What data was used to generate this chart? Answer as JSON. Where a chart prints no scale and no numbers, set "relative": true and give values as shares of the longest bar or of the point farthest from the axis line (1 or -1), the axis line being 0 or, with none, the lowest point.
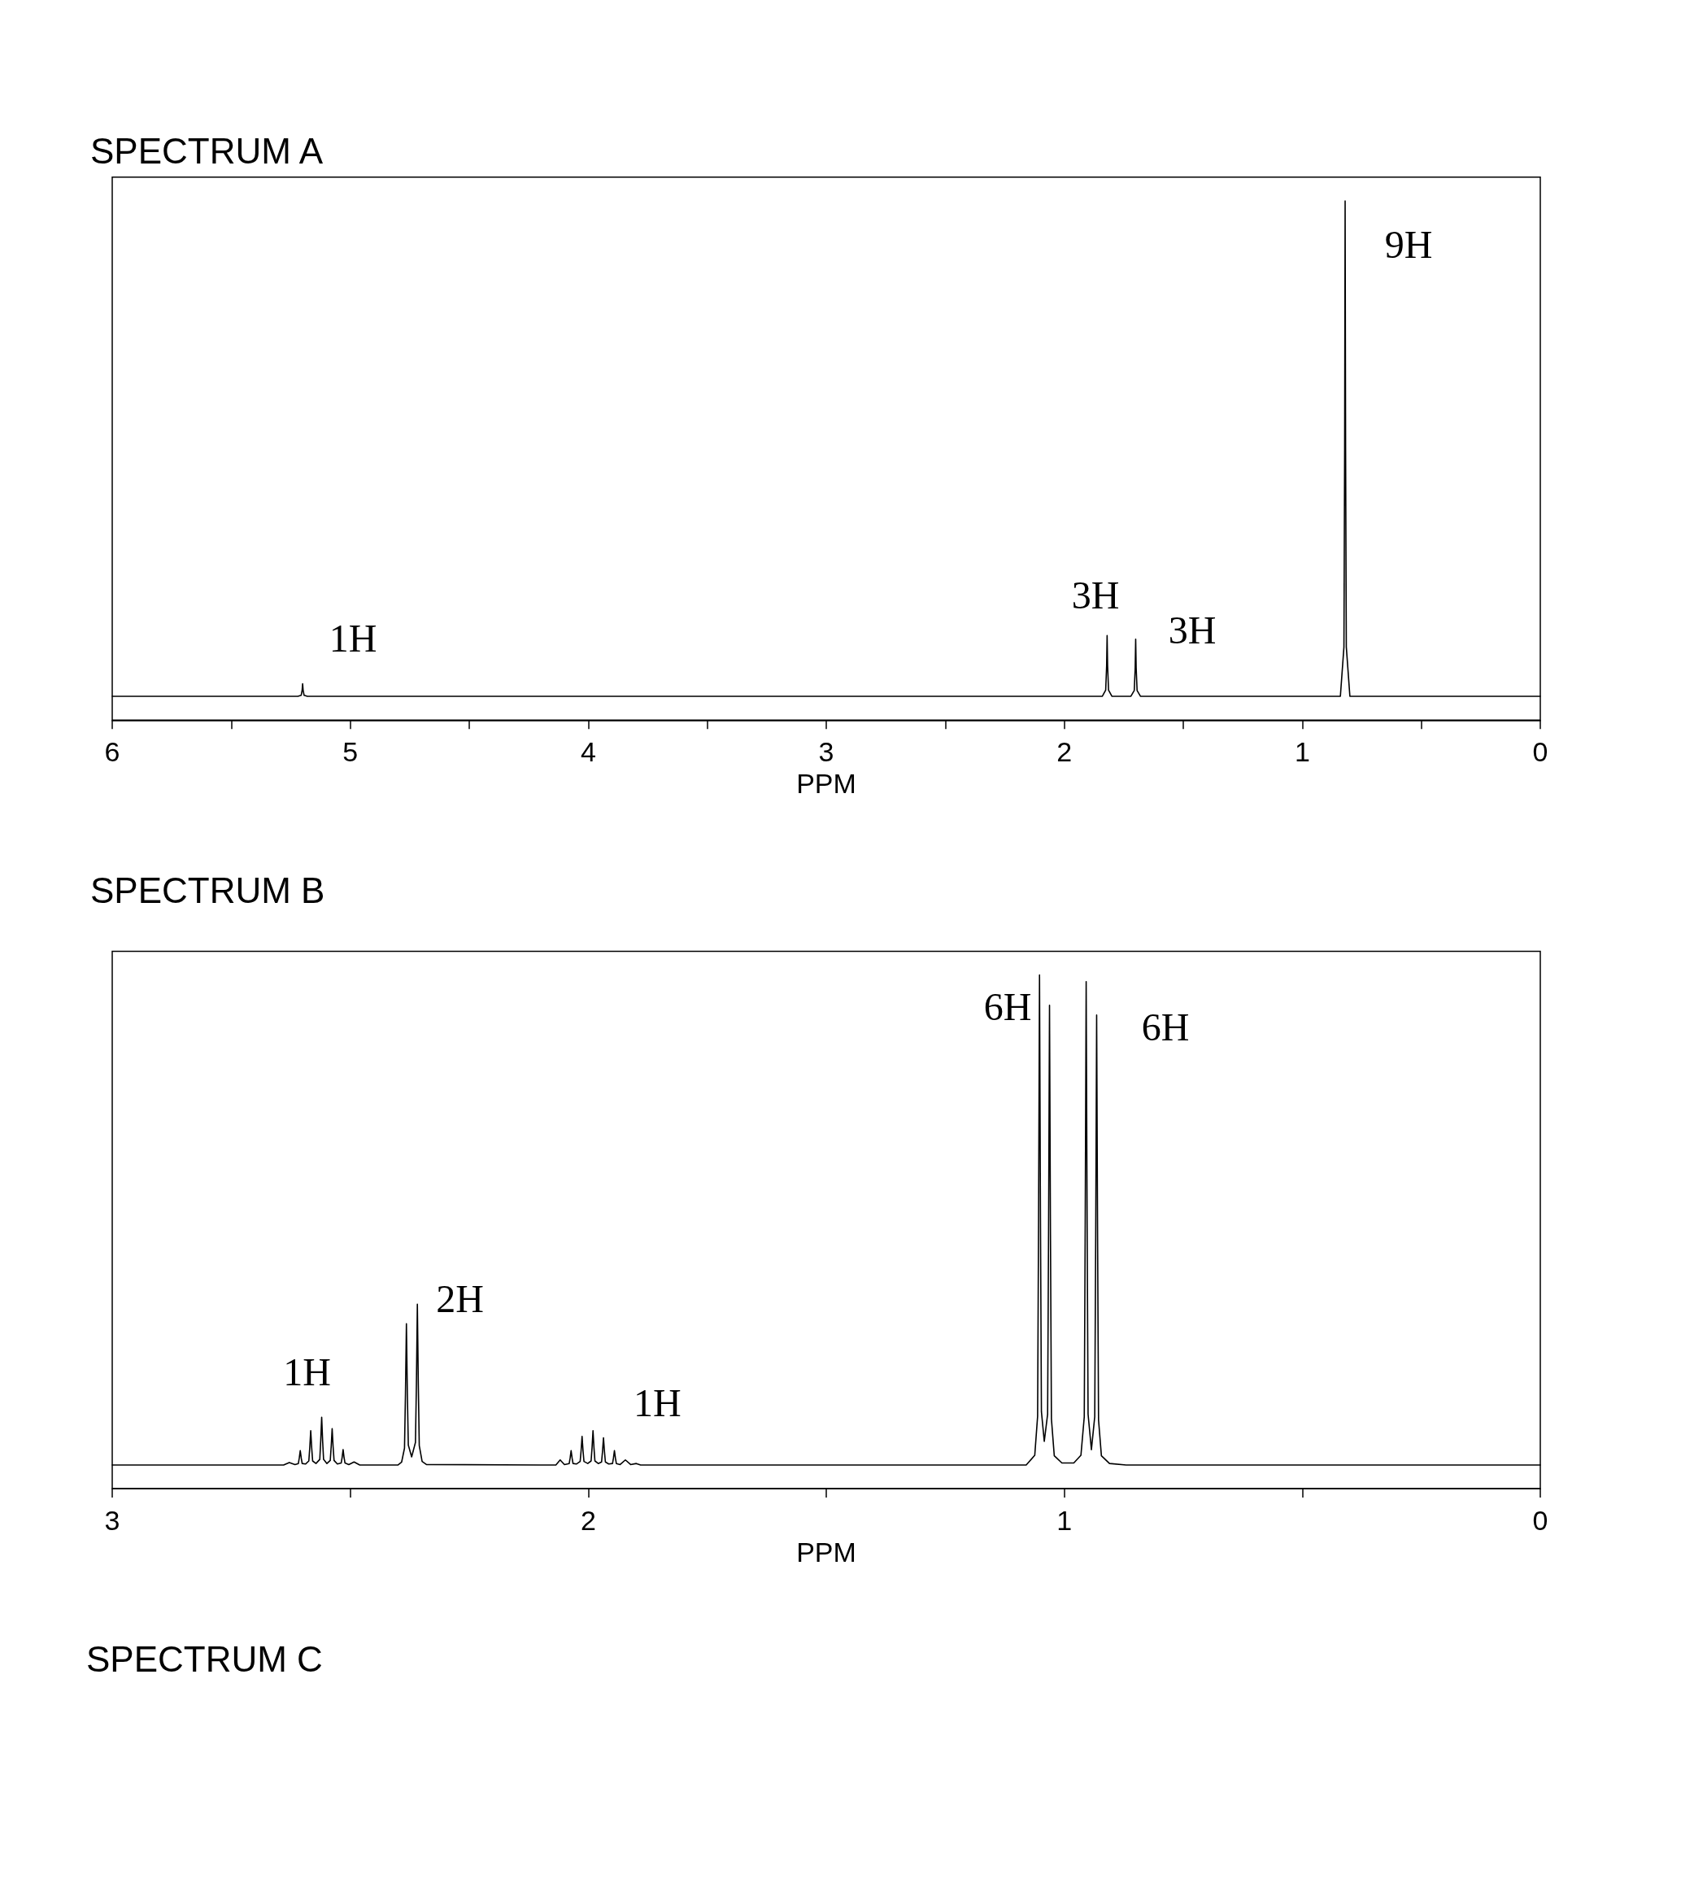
{
  "chart_data": [
    {
      "type": "line",
      "title": "SPECTRUM A",
      "xlabel": "PPM",
      "relative": true,
      "tick_labels": "x",
      "color": "#000000",
      "marker": "none",
      "line_style": "solid",
      "xlim": [
        6,
        0
      ],
      "xticks": [
        6,
        {
          "value": 5.5,
          "label": null
        },
        5,
        {
          "value": 4.5,
          "label": null
        },
        4,
        {
          "value": 3.5,
          "label": null
        },
        3,
        {
          "value": 2.5,
          "label": null
        },
        2,
        {
          "value": 1.5,
          "label": null
        },
        1,
        {
          "value": 0.5,
          "label": null
        },
        0
      ],
      "x": [
        6.0,
        5.22,
        5.206,
        5.202,
        5.2,
        5.198,
        5.194,
        5.18,
        1.84,
        1.826,
        1.822,
        1.82,
        1.818,
        1.814,
        1.8,
        1.72,
        1.706,
        1.702,
        1.7,
        1.698,
        1.694,
        1.68,
        0.84,
        0.825,
        0.822,
        0.82,
        0.818,
        0.815,
        0.8,
        0.0
      ],
      "values": [
        0.046,
        0.046,
        0.048,
        0.058,
        0.07,
        0.058,
        0.048,
        0.046,
        0.046,
        0.058,
        0.105,
        0.163,
        0.105,
        0.058,
        0.046,
        0.046,
        0.057,
        0.101,
        0.156,
        0.101,
        0.057,
        0.046,
        0.046,
        0.141,
        0.523,
        1.0,
        0.523,
        0.141,
        0.046,
        0.046
      ],
      "annotations": [
        "1H",
        "3H",
        "3H",
        "9H"
      ]
    },
    {
      "type": "line",
      "title": "SPECTRUM B",
      "xlabel": "PPM",
      "relative": true,
      "tick_labels": "x",
      "color": "#000000",
      "marker": "none",
      "line_style": "solid",
      "xlim": [
        3,
        0
      ],
      "xticks": [
        3,
        {
          "value": 2.5,
          "label": null
        },
        2,
        {
          "value": 1.5,
          "label": null
        },
        1,
        {
          "value": 0.5,
          "label": null
        },
        0
      ],
      "x": [
        3.0,
        2.64,
        2.628,
        2.616,
        2.609,
        2.607,
        2.605,
        2.603,
        2.601,
        2.594,
        2.587,
        2.585,
        2.583,
        2.581,
        2.579,
        2.572,
        2.564,
        2.562,
        2.56,
        2.558,
        2.556,
        2.549,
        2.542,
        2.54,
        2.538,
        2.536,
        2.534,
        2.527,
        2.519,
        2.517,
        2.515,
        2.513,
        2.511,
        2.503,
        2.492,
        2.48,
        2.4,
        2.392,
        2.386,
        2.384,
        2.382,
        2.38,
        2.378,
        2.371,
        2.363,
        2.361,
        2.359,
        2.357,
        2.355,
        2.349,
        2.34,
        2.1,
        2.068,
        2.059,
        2.05,
        2.04,
        2.038,
        2.036,
        2.034,
        2.032,
        2.025,
        2.017,
        2.015,
        2.013,
        2.011,
        2.009,
        2.001,
        1.994,
        1.992,
        1.99,
        1.988,
        1.986,
        1.979,
        1.972,
        1.97,
        1.968,
        1.966,
        1.964,
        1.957,
        1.949,
        1.947,
        1.945,
        1.943,
        1.941,
        1.933,
        1.922,
        1.911,
        1.899,
        1.89,
        1.2,
        1.08,
        1.062,
        1.056,
        1.054,
        1.052,
        1.05,
        1.048,
        1.042,
        1.035,
        1.033,
        1.031,
        1.029,
        1.027,
        1.021,
        1.005,
        0.98,
        0.965,
        0.958,
        0.956,
        0.954,
        0.952,
        0.95,
        0.943,
        0.936,
        0.934,
        0.932,
        0.93,
        0.928,
        0.922,
        0.905,
        0.87,
        0.0
      ],
      "values": [
        0.046,
        0.046,
        0.051,
        0.047,
        0.049,
        0.06,
        0.074,
        0.06,
        0.049,
        0.048,
        0.054,
        0.08,
        0.113,
        0.08,
        0.054,
        0.049,
        0.057,
        0.093,
        0.139,
        0.093,
        0.057,
        0.049,
        0.055,
        0.082,
        0.117,
        0.082,
        0.055,
        0.048,
        0.05,
        0.061,
        0.076,
        0.061,
        0.05,
        0.047,
        0.052,
        0.046,
        0.046,
        0.052,
        0.079,
        0.184,
        0.321,
        0.184,
        0.085,
        0.062,
        0.09,
        0.203,
        0.359,
        0.203,
        0.084,
        0.053,
        0.047,
        0.046,
        0.046,
        0.056,
        0.047,
        0.049,
        0.06,
        0.074,
        0.06,
        0.049,
        0.048,
        0.053,
        0.074,
        0.102,
        0.074,
        0.053,
        0.049,
        0.054,
        0.08,
        0.113,
        0.08,
        0.054,
        0.049,
        0.052,
        0.073,
        0.099,
        0.073,
        0.052,
        0.048,
        0.049,
        0.06,
        0.074,
        0.06,
        0.049,
        0.047,
        0.056,
        0.047,
        0.049,
        0.046,
        0.046,
        0.046,
        0.065,
        0.141,
        0.523,
        1.0,
        0.523,
        0.15,
        0.092,
        0.145,
        0.494,
        0.941,
        0.494,
        0.136,
        0.064,
        0.05,
        0.05,
        0.065,
        0.14,
        0.517,
        0.987,
        0.517,
        0.145,
        0.076,
        0.14,
        0.484,
        0.922,
        0.484,
        0.134,
        0.064,
        0.049,
        0.046,
        0.046
      ],
      "annotations": [
        "1H",
        "2H",
        "1H",
        "6H",
        "6H"
      ]
    },
    {
      "type": "other",
      "title": "SPECTRUM C"
    }
  ]
}
